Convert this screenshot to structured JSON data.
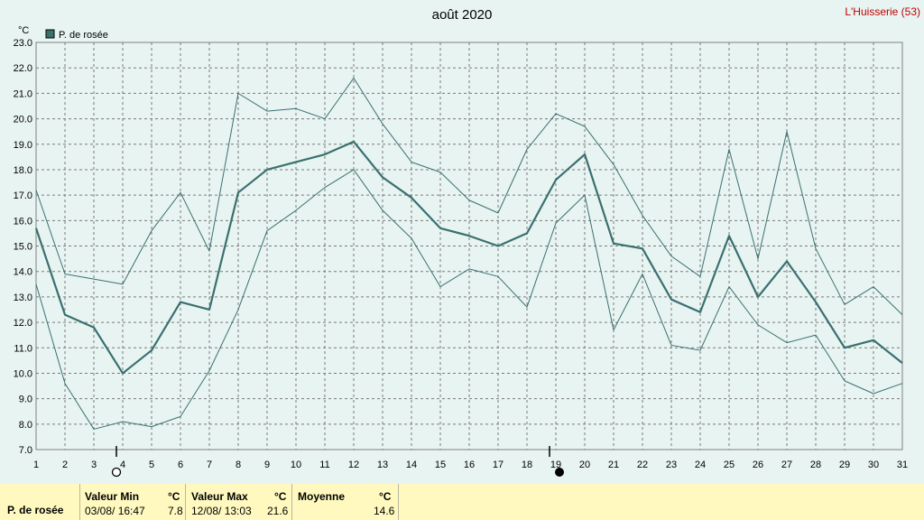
{
  "chart_data": {
    "type": "line",
    "title": "août 2020",
    "station": "L'Huisserie (53)",
    "ylabel": "°C",
    "ylim": [
      7.0,
      23.0
    ],
    "yticks": [
      "7.0",
      "8.0",
      "9.0",
      "10.0",
      "11.0",
      "12.0",
      "13.0",
      "14.0",
      "15.0",
      "16.0",
      "17.0",
      "18.0",
      "19.0",
      "20.0",
      "21.0",
      "22.0",
      "23.0"
    ],
    "x": [
      1,
      2,
      3,
      4,
      5,
      6,
      7,
      8,
      9,
      10,
      11,
      12,
      13,
      14,
      15,
      16,
      17,
      18,
      19,
      20,
      21,
      22,
      23,
      24,
      25,
      26,
      27,
      28,
      29,
      30,
      31
    ],
    "legend": "P. de rosée",
    "grid": true,
    "series": [
      {
        "name": "P. de rosée",
        "role": "mean",
        "color": "#3a7070",
        "values": [
          15.7,
          12.3,
          11.8,
          10.0,
          10.9,
          12.8,
          12.5,
          17.1,
          18.0,
          18.3,
          18.6,
          19.1,
          17.7,
          16.9,
          15.7,
          15.4,
          15.0,
          15.5,
          17.6,
          18.6,
          15.1,
          14.9,
          12.9,
          12.4,
          15.4,
          13.0,
          14.4,
          12.8,
          11.0,
          11.3,
          10.4
        ]
      },
      {
        "role": "max",
        "color": "#3a7070",
        "values": [
          17.2,
          13.9,
          13.7,
          13.5,
          15.6,
          17.1,
          14.8,
          21.0,
          20.3,
          20.4,
          20.0,
          21.6,
          19.8,
          18.3,
          17.9,
          16.8,
          16.3,
          18.8,
          20.2,
          19.7,
          18.2,
          16.2,
          14.6,
          13.8,
          18.8,
          14.5,
          19.5,
          14.9,
          12.7,
          13.4,
          12.3
        ]
      },
      {
        "role": "min",
        "color": "#3a7070",
        "values": [
          13.5,
          9.6,
          7.8,
          8.1,
          7.9,
          8.3,
          10.1,
          12.5,
          15.6,
          16.4,
          17.3,
          18.0,
          16.4,
          15.3,
          13.4,
          14.1,
          13.8,
          12.6,
          15.9,
          17.0,
          11.7,
          13.9,
          11.1,
          10.9,
          13.4,
          11.9,
          11.2,
          11.5,
          9.7,
          9.2,
          9.6
        ]
      }
    ],
    "markers": [
      {
        "day": 4,
        "type": "open-circle"
      },
      {
        "day": 19,
        "type": "filled-circle"
      }
    ]
  },
  "stats": {
    "row_label": "P. de rosée",
    "min_label": "Valeur Min",
    "min_unit": "°C",
    "min_date": "03/08/  16:47",
    "min_value": "7.8",
    "max_label": "Valeur Max",
    "max_unit": "°C",
    "max_date": "12/08/  13:03",
    "max_value": "21.6",
    "avg_label": "Moyenne",
    "avg_unit": "°C",
    "avg_value": "14.6"
  }
}
